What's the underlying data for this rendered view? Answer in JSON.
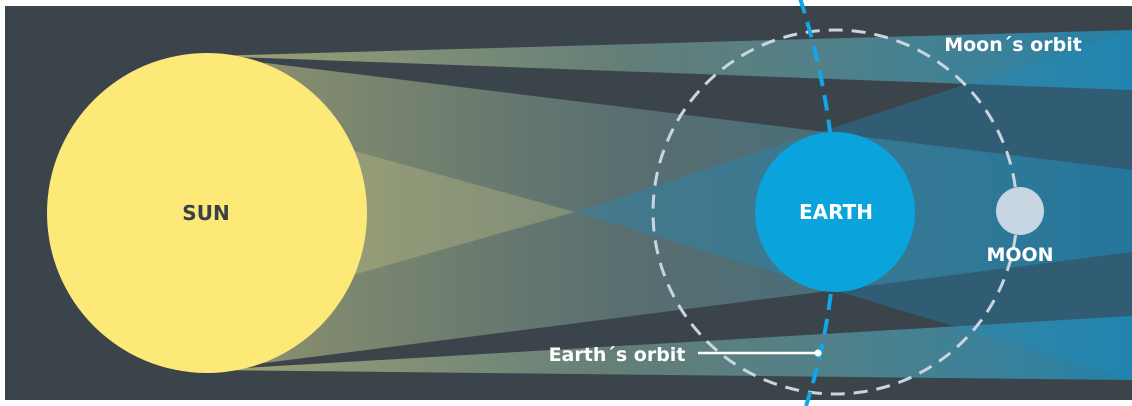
{
  "labels": {
    "sun": "SUN",
    "earth": "EARTH",
    "moon": "MOON",
    "moon_orbit": "Moon´s orbit",
    "earth_orbit": "Earth´s orbit"
  },
  "colors": {
    "background": "#3b444b",
    "sun": "#fde978",
    "earth": "#0aa3dc",
    "moon": "#c7d6e2",
    "orbit": "#c9d6df",
    "earth_orbit": "#12a6e8"
  }
}
